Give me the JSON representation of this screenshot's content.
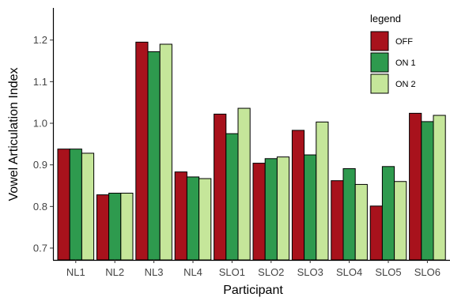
{
  "chart_data": {
    "type": "bar",
    "xlabel": "Participant",
    "ylabel": "Vowel Articulation Index",
    "categories": [
      "NL1",
      "NL2",
      "NL3",
      "NL4",
      "SLO1",
      "SLO2",
      "SLO3",
      "SLO4",
      "SLO5",
      "SLO6"
    ],
    "ylim": [
      0.68,
      1.28
    ],
    "yticks": [
      0.7,
      0.8,
      0.9,
      1.0,
      1.1,
      1.2
    ],
    "ytick_labels": [
      "0.7",
      "0.8",
      "0.9",
      "1.0",
      "1.1",
      "1.2"
    ],
    "grid": false,
    "legend": {
      "title": "legend",
      "placement": "top-right"
    },
    "series": [
      {
        "name": "OFF",
        "color": "#a8121c",
        "values": [
          0.938,
          0.828,
          1.195,
          0.883,
          1.022,
          0.904,
          0.983,
          0.862,
          0.801,
          1.024
        ]
      },
      {
        "name": "ON 1",
        "color": "#2e9a4e",
        "values": [
          0.938,
          0.832,
          1.172,
          0.871,
          0.975,
          0.915,
          0.924,
          0.891,
          0.896,
          1.004
        ]
      },
      {
        "name": "ON 2",
        "color": "#c5e69a",
        "values": [
          0.928,
          0.832,
          1.19,
          0.867,
          1.036,
          0.919,
          1.003,
          0.853,
          0.86,
          1.019
        ]
      }
    ]
  }
}
